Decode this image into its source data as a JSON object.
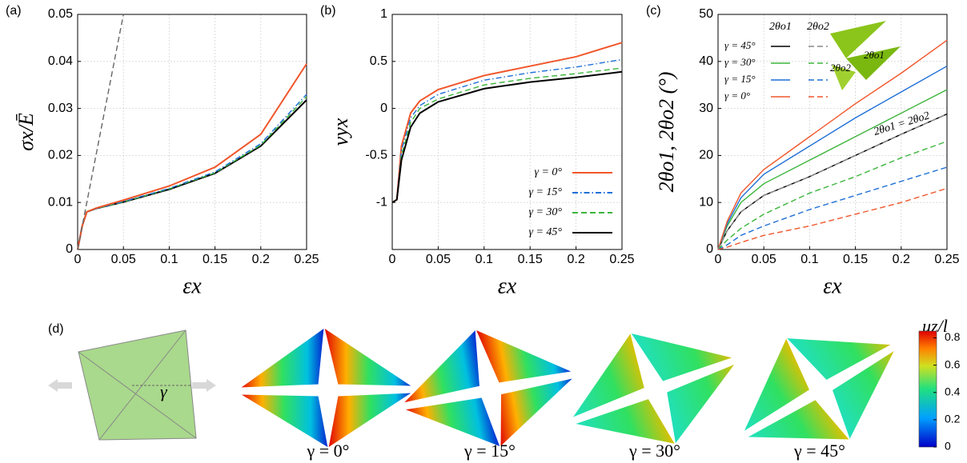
{
  "chart_data": [
    {
      "type": "line",
      "panel_label": "(a)",
      "xlabel": "εx",
      "ylabel": "σx/Ē",
      "x": [
        0,
        0.005,
        0.01,
        0.02,
        0.05,
        0.1,
        0.15,
        0.2,
        0.25
      ],
      "xlim": [
        0,
        0.25
      ],
      "xticks": [
        0,
        0.05,
        0.1,
        0.15,
        0.2,
        0.25
      ],
      "ylim": [
        0,
        0.05
      ],
      "yticks": [
        0,
        0.01,
        0.02,
        0.03,
        0.04,
        0.05
      ],
      "grid": true,
      "series": [
        {
          "color": "#000000",
          "style": "solid",
          "values": [
            0,
            0.005,
            0.008,
            0.0087,
            0.0101,
            0.0128,
            0.0162,
            0.022,
            0.0318
          ]
        },
        {
          "color": "#3cb53c",
          "style": "dashed",
          "values": [
            0,
            0.005,
            0.008,
            0.0087,
            0.0101,
            0.0129,
            0.0163,
            0.0222,
            0.0325
          ]
        },
        {
          "color": "#1f6fd6",
          "style": "dashdot",
          "values": [
            0,
            0.005,
            0.008,
            0.0087,
            0.0102,
            0.013,
            0.0165,
            0.0225,
            0.033
          ]
        },
        {
          "color": "#f0562b",
          "style": "solid",
          "values": [
            0,
            0.005,
            0.008,
            0.0088,
            0.0105,
            0.0135,
            0.0175,
            0.0245,
            0.0395
          ]
        },
        {
          "color": "#666666",
          "style": "dashed",
          "x": [
            0,
            0.05
          ],
          "values": [
            0,
            0.05
          ]
        }
      ]
    },
    {
      "type": "line",
      "panel_label": "(b)",
      "xlabel": "εx",
      "ylabel": "νyx",
      "x": [
        0,
        0.005,
        0.01,
        0.02,
        0.03,
        0.05,
        0.1,
        0.15,
        0.2,
        0.25
      ],
      "xlim": [
        0,
        0.25
      ],
      "xticks": [
        0,
        0.05,
        0.1,
        0.15,
        0.2,
        0.25
      ],
      "ylim": [
        -1.5,
        1
      ],
      "yticks": [
        -1,
        -0.5,
        0,
        0.5,
        1
      ],
      "grid": true,
      "legend": "lower right",
      "series": [
        {
          "name": "γ = 0°",
          "color": "#f0562b",
          "style": "solid",
          "values": [
            -1,
            -0.97,
            -0.4,
            -0.05,
            0.08,
            0.2,
            0.35,
            0.45,
            0.55,
            0.7
          ]
        },
        {
          "name": "γ = 15°",
          "color": "#1f6fd6",
          "style": "dashdot",
          "values": [
            -1,
            -0.97,
            -0.45,
            -0.1,
            0.03,
            0.15,
            0.3,
            0.38,
            0.44,
            0.52
          ]
        },
        {
          "name": "γ = 30°",
          "color": "#3cb53c",
          "style": "dashed",
          "values": [
            -1,
            -0.97,
            -0.5,
            -0.15,
            0,
            0.1,
            0.25,
            0.32,
            0.37,
            0.43
          ]
        },
        {
          "name": "γ = 45°",
          "color": "#000000",
          "style": "solid",
          "values": [
            -1,
            -0.97,
            -0.55,
            -0.2,
            -0.05,
            0.07,
            0.21,
            0.28,
            0.33,
            0.39
          ]
        }
      ]
    },
    {
      "type": "line",
      "panel_label": "(c)",
      "xlabel": "εx",
      "ylabel": "2θo1, 2θo2 (°)",
      "x": [
        0,
        0.01,
        0.025,
        0.05,
        0.1,
        0.15,
        0.2,
        0.25
      ],
      "xlim": [
        0,
        0.25
      ],
      "xticks": [
        0,
        0.05,
        0.1,
        0.15,
        0.2,
        0.25
      ],
      "ylim": [
        0,
        50
      ],
      "yticks": [
        0,
        10,
        20,
        30,
        40,
        50
      ],
      "grid": true,
      "legend": "upper left",
      "legend_columns": [
        "2θo1",
        "2θo2"
      ],
      "annotations": [
        "2θo1 = 2θo2"
      ],
      "inset_labels": [
        "2θo1",
        "2θo2"
      ],
      "series": [
        {
          "name": "γ = 45°",
          "color": "#000000",
          "style": "solid",
          "values": [
            0,
            4,
            8,
            11.5,
            15.5,
            20,
            24.5,
            28.8
          ]
        },
        {
          "name": "γ = 30°",
          "color": "#3cb53c",
          "style": "solid",
          "values": [
            0,
            5,
            10,
            14,
            19,
            24,
            29,
            34
          ]
        },
        {
          "name": "γ = 15°",
          "color": "#1f6fd6",
          "style": "solid",
          "values": [
            0,
            5.5,
            11,
            16,
            22,
            28,
            33.5,
            39
          ]
        },
        {
          "name": "γ = 0°",
          "color": "#f0562b",
          "style": "solid",
          "values": [
            0,
            6,
            12,
            17,
            24,
            31,
            37.5,
            44.5
          ]
        },
        {
          "color": "#888888",
          "style": "dashed",
          "values": [
            0,
            4,
            8,
            11.5,
            15.5,
            20,
            24.5,
            28.8
          ]
        },
        {
          "color": "#3cb53c",
          "style": "dashed",
          "values": [
            0,
            2,
            4.5,
            7.5,
            12,
            15.5,
            19.5,
            23
          ]
        },
        {
          "color": "#1f6fd6",
          "style": "dashed",
          "values": [
            0,
            1,
            3,
            5,
            8.5,
            11.5,
            14.5,
            17.5
          ]
        },
        {
          "color": "#f0562b",
          "style": "dashed",
          "values": [
            0,
            0.5,
            1.5,
            3,
            5,
            7.5,
            10,
            13
          ]
        }
      ]
    }
  ],
  "panel_d": {
    "label": "(d)",
    "diagram_label": "γ",
    "captions": [
      "γ = 0°",
      "γ = 15°",
      "γ = 30°",
      "γ = 45°"
    ],
    "colorbar": {
      "title": "uz/l",
      "lim": [
        0,
        0.85
      ],
      "ticks": [
        0,
        0.2,
        0.4,
        0.6,
        0.8
      ]
    }
  }
}
